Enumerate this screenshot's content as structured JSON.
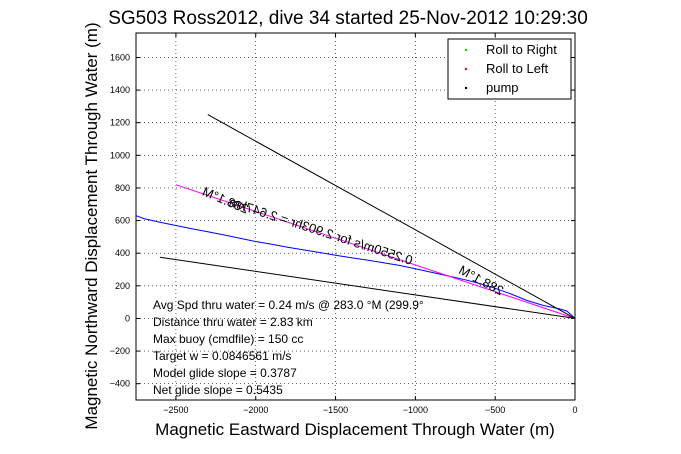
{
  "chart_data": {
    "type": "line",
    "title": "SG503 Ross2012, dive 34 started 25-Nov-2012 10:29:30",
    "xlabel": "Magnetic Eastward Displacement Through Water (m)",
    "ylabel": "Magnetic Northward Displacement Through Water (m)",
    "xlim": [
      -2750,
      0
    ],
    "ylim": [
      -500,
      1750
    ],
    "xticks": [
      -2500,
      -2000,
      -1500,
      -1000,
      -500,
      0
    ],
    "yticks": [
      -400,
      -200,
      0,
      200,
      400,
      600,
      800,
      1000,
      1200,
      1400,
      1600
    ],
    "xtick_labels": [
      "−2500",
      "−2000",
      "−1500",
      "−1000",
      "−500",
      "0"
    ],
    "ytick_labels": [
      "−400",
      "−200",
      "0",
      "200",
      "400",
      "600",
      "800",
      "1000",
      "1200",
      "1400",
      "1600"
    ],
    "grid": true,
    "legend_position": "top-right",
    "legend": [
      {
        "name": "Roll to Right",
        "color": "#00cc00",
        "marker": "dot"
      },
      {
        "name": "Roll to Left",
        "color": "#ff0000",
        "marker": "dot"
      },
      {
        "name": "pump",
        "color": "#000000",
        "marker": "dot"
      }
    ],
    "series": [
      {
        "color": "#0000ff",
        "x": [
          -2750,
          -2700,
          -2600,
          -2500,
          -2400,
          -2300,
          -2200,
          -2100,
          -2000,
          -1900,
          -1800,
          -1700,
          -1600,
          -1500,
          -1400,
          -1300,
          -1200,
          -1100,
          -1000,
          -900,
          -800,
          -700,
          -600,
          -500,
          -400,
          -300,
          -200,
          -100,
          -50,
          0
        ],
        "y": [
          630,
          612,
          590,
          570,
          550,
          532,
          512,
          492,
          472,
          455,
          437,
          420,
          404,
          388,
          372,
          358,
          342,
          325,
          305,
          283,
          262,
          240,
          215,
          185,
          150,
          110,
          80,
          60,
          45,
          0
        ]
      },
      {
        "color": "#ff00ff",
        "x": [
          -2500,
          0
        ],
        "y": [
          820,
          0
        ]
      },
      {
        "color": "#000000",
        "x": [
          -2300,
          0
        ],
        "y": [
          1250,
          0
        ]
      },
      {
        "color": "#000000",
        "x": [
          -2600,
          0
        ],
        "y": [
          375,
          0
        ]
      }
    ],
    "rotated_labels": [
      {
        "text": "288.1°M",
        "x": -2200,
        "y": 700,
        "angle": 23
      },
      {
        "text": "288.1°M",
        "x": -600,
        "y": 210,
        "angle": 28
      },
      {
        "text": "0.2550m/s for 2.903hr = 2.647km",
        "x": -1600,
        "y": 510,
        "angle": 18
      }
    ],
    "annotations": [
      "Avg Spd thru water =  0.24 m/s @ 283.0   °M (299.9°",
      "Distance thru water =  2.83 km",
      "Max buoy (cmdfile) = 150 cc",
      "Target w = 0.0846561 m/s",
      "Model glide slope = 0.3787",
      "Net glide slope = 0.5435"
    ]
  }
}
